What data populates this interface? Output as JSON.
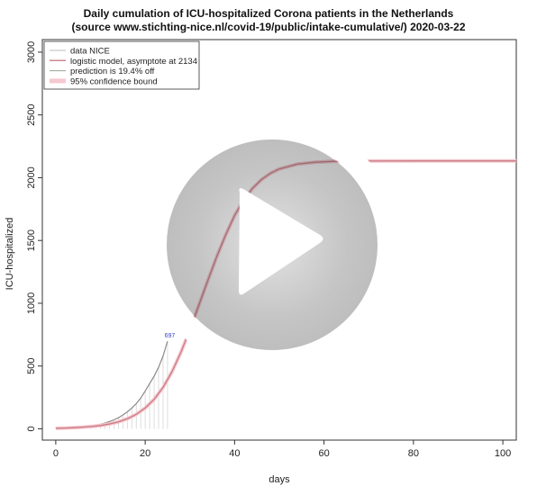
{
  "chart_data": {
    "type": "line",
    "title": "Daily cumulation of ICU-hospitalized Corona patients in the Netherlands",
    "subtitle": "(source www.stichting-nice.nl/covid-19/public/intake-cumulative/)  2020-03-22",
    "xlabel": "days",
    "ylabel": "ICU-hospitalized",
    "xlim": [
      -3,
      103
    ],
    "ylim": [
      -90,
      3100
    ],
    "x_ticks": [
      0,
      20,
      40,
      60,
      80,
      100
    ],
    "y_ticks": [
      0,
      500,
      1000,
      1500,
      2000,
      2500,
      3000
    ],
    "grid": false,
    "legend_position": "top-left",
    "legend": [
      {
        "label": "data NICE",
        "color": "#bbbbbb",
        "width": 1
      },
      {
        "label": "logistic model, asymptote at 2134",
        "color": "#d0888d",
        "width": 1.5
      },
      {
        "label": "prediction is 19.4% off",
        "color": "#9aa59a",
        "width": 1
      },
      {
        "label": "95% confidence bound",
        "color": "#f6c8d0",
        "width": 5
      }
    ],
    "data_label": {
      "text": "697",
      "x": 25.3,
      "y": 697,
      "color": "#3a44c2"
    },
    "series": [
      {
        "name": "data NICE",
        "x": [
          0,
          1,
          2,
          3,
          4,
          5,
          6,
          7,
          8,
          9,
          10,
          11,
          12,
          13,
          14,
          15,
          16,
          17,
          18,
          19,
          20,
          21,
          22,
          23,
          24,
          25
        ],
        "y": [
          5,
          6,
          7,
          9,
          11,
          12,
          15,
          19,
          24,
          30,
          36,
          46,
          58,
          71,
          88,
          110,
          135,
          165,
          200,
          245,
          300,
          360,
          420,
          490,
          580,
          697
        ]
      },
      {
        "name": "logistic model, asymptote at 2134",
        "asymptote": 2134,
        "x": [
          0,
          2,
          4,
          6,
          8,
          10,
          12,
          14,
          16,
          18,
          20,
          22,
          24,
          26,
          28,
          30,
          32,
          34,
          36,
          38,
          40,
          42,
          44,
          46,
          48,
          50,
          54,
          58,
          62,
          66,
          70,
          80,
          90,
          100,
          103
        ],
        "y": [
          4,
          6,
          9,
          13,
          18,
          26,
          38,
          55,
          80,
          115,
          165,
          235,
          330,
          455,
          610,
          790,
          985,
          1180,
          1370,
          1545,
          1700,
          1820,
          1915,
          1985,
          2035,
          2070,
          2108,
          2124,
          2130,
          2132,
          2133,
          2134,
          2134,
          2134,
          2134
        ]
      }
    ]
  }
}
